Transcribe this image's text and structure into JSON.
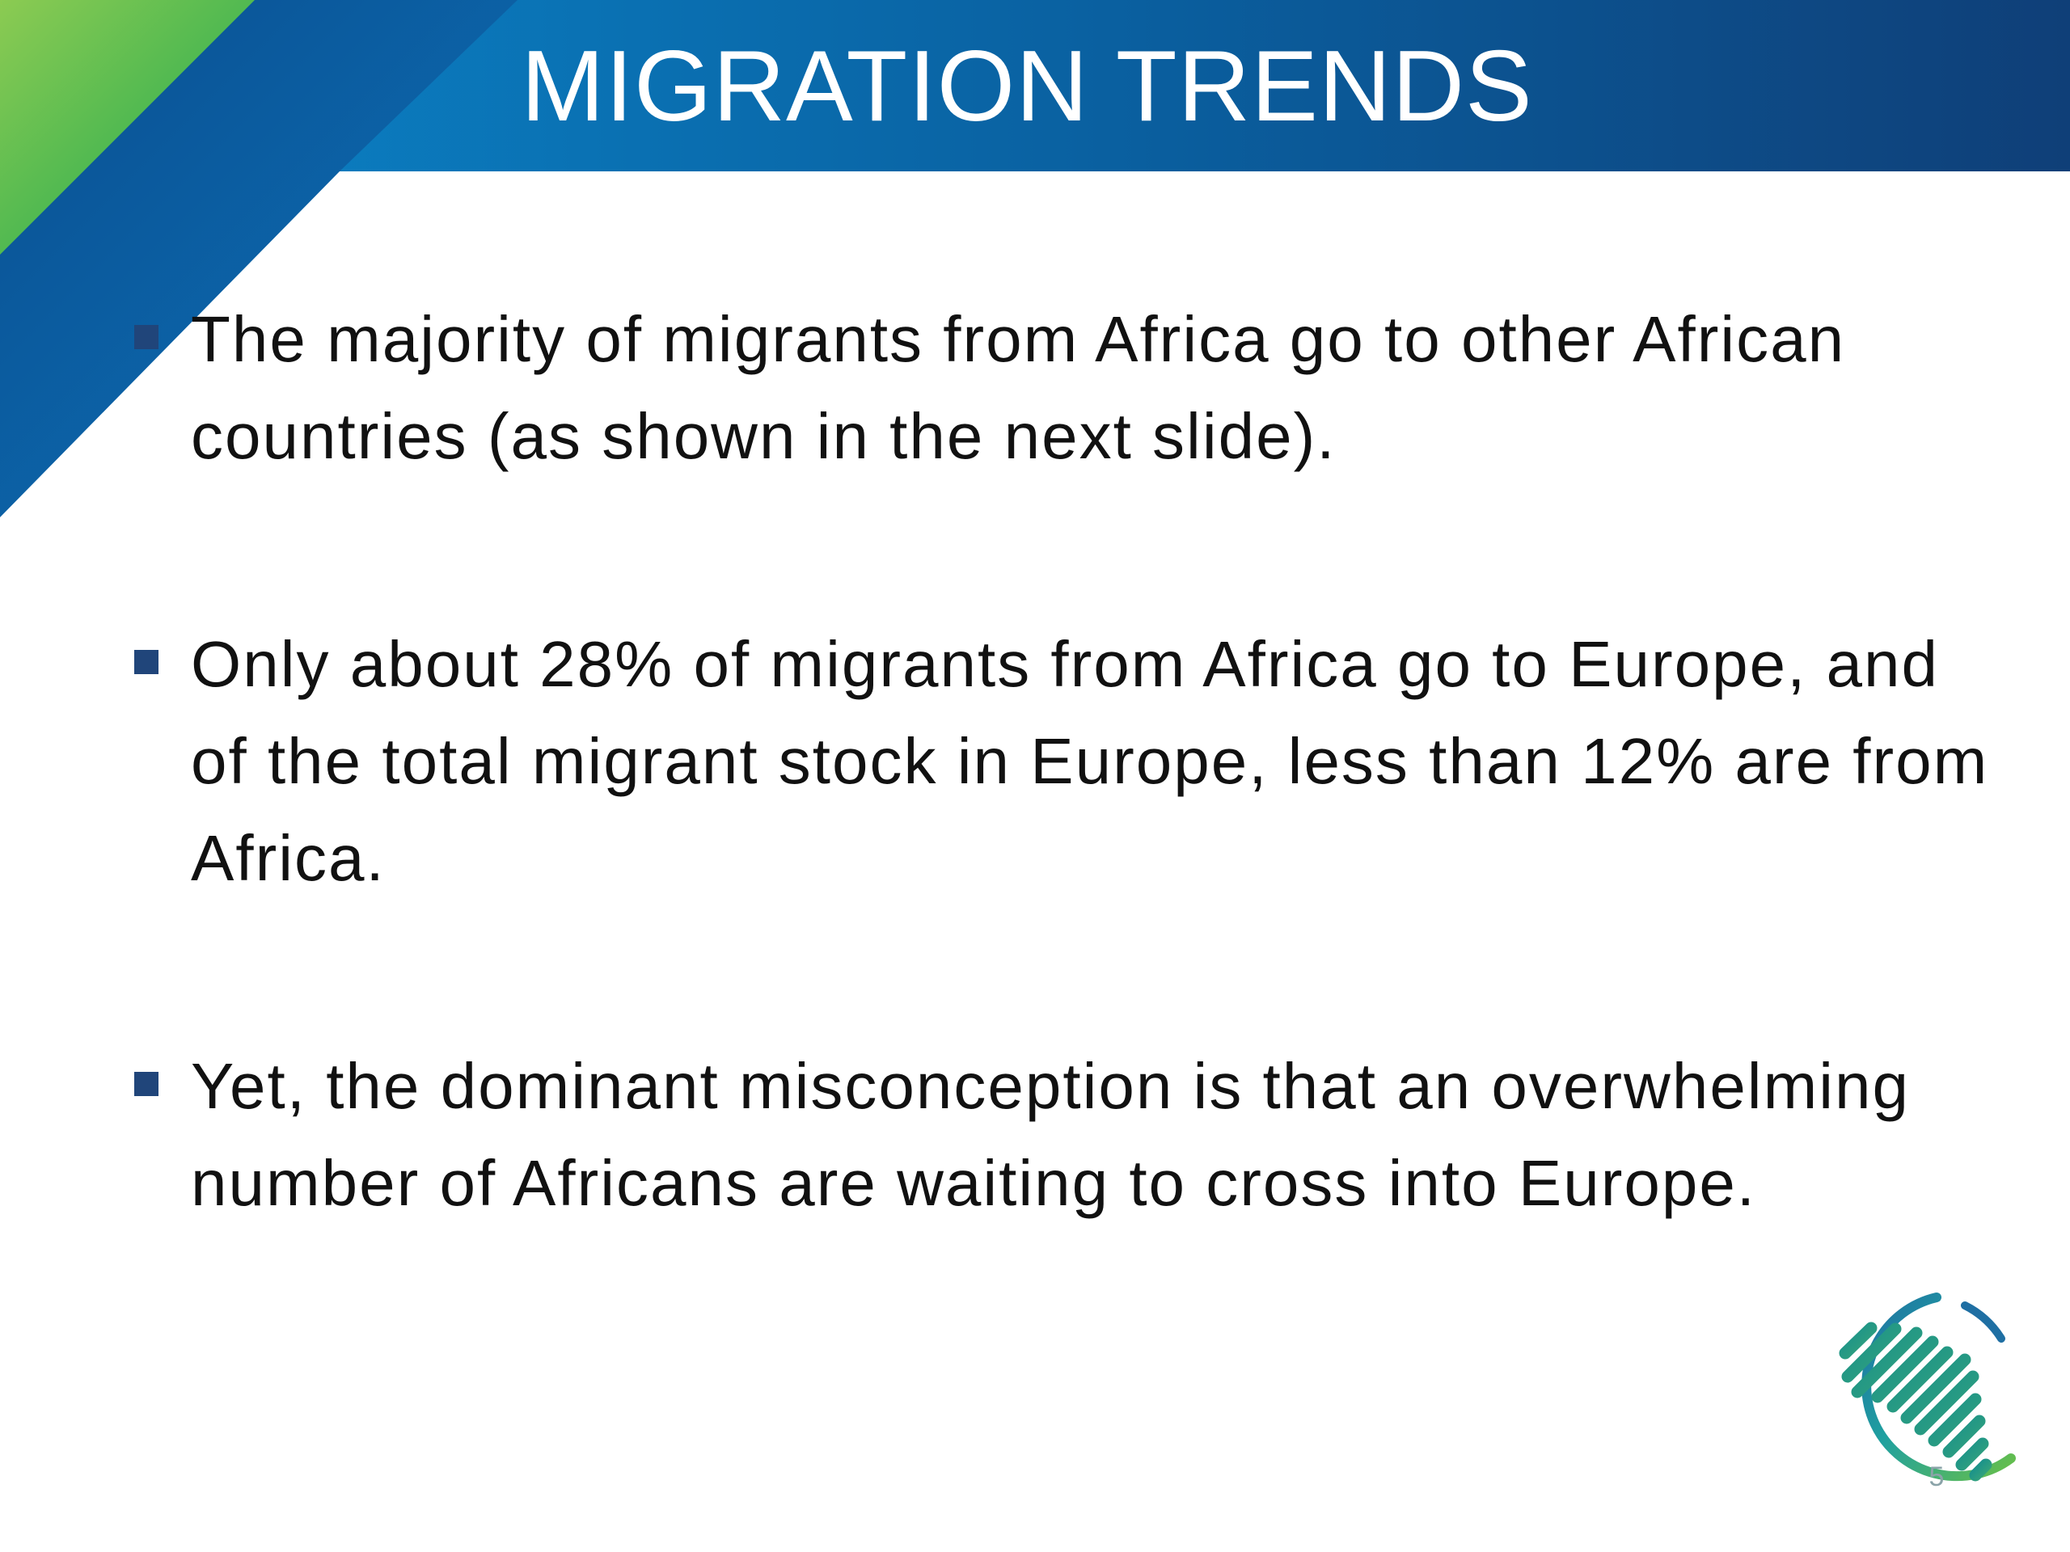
{
  "slide": {
    "title": "MIGRATION TRENDS",
    "bullets": [
      {
        "text": "The majority of migrants from Africa go to other African countries (as shown in the next slide)."
      },
      {
        "text": "Only about 28% of migrants from Africa go to Europe, and of the total migrant stock in Europe, less than 12% are from Africa."
      },
      {
        "text": "Yet, the dominant misconception is that an overwhelming number of Africans are waiting to cross into Europe."
      }
    ],
    "page_number": "5"
  },
  "colors": {
    "header_blue_dark": "#0f3f78",
    "header_blue_mid": "#0d64a8",
    "accent_green": "#67bf4a",
    "accent_teal": "#1fa0a0",
    "bullet_blue": "#20457a"
  },
  "icons": {
    "logo": "africa-map-logo-icon"
  }
}
